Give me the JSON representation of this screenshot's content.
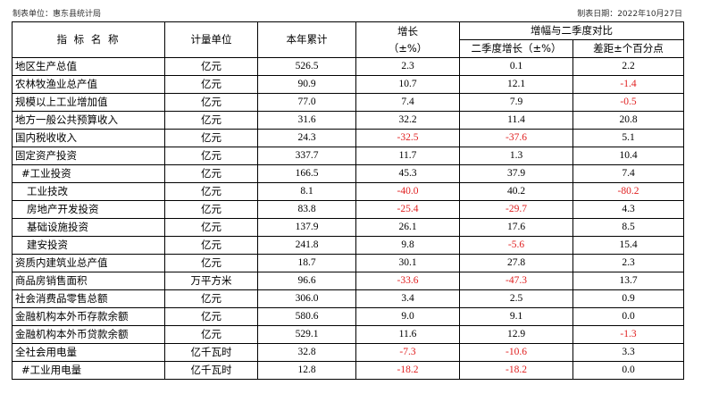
{
  "meta": {
    "unit_label": "制表单位：惠东县统计局",
    "date_label": "制表日期：2022年10月27日"
  },
  "header": {
    "name": "指 标 名 称",
    "unit": "计量单位",
    "ytd": "本年累计",
    "growth_line1": "增长",
    "growth_line2": "（±%）",
    "compare_group": "增幅与二季度对比",
    "q2_growth": "二季度增长（±%）",
    "diff": "差距±个百分点"
  },
  "rows": [
    {
      "name": "地区生产总值",
      "indent": 0,
      "unit": "亿元",
      "ytd": "526.5",
      "growth": "2.3",
      "q2": "0.1",
      "diff": "2.2"
    },
    {
      "name": "农林牧渔业总产值",
      "indent": 0,
      "unit": "亿元",
      "ytd": "90.9",
      "growth": "10.7",
      "q2": "12.1",
      "diff": "-1.4"
    },
    {
      "name": "规模以上工业增加值",
      "indent": 0,
      "unit": "亿元",
      "ytd": "77.0",
      "growth": "7.4",
      "q2": "7.9",
      "diff": "-0.5"
    },
    {
      "name": "地方一般公共预算收入",
      "indent": 0,
      "unit": "亿元",
      "ytd": "31.6",
      "growth": "32.2",
      "q2": "11.4",
      "diff": "20.8"
    },
    {
      "name": "国内税收收入",
      "indent": 0,
      "unit": "亿元",
      "ytd": "24.3",
      "growth": "-32.5",
      "q2": "-37.6",
      "diff": "5.1"
    },
    {
      "name": "固定资产投资",
      "indent": 0,
      "unit": "亿元",
      "ytd": "337.7",
      "growth": "11.7",
      "q2": "1.3",
      "diff": "10.4"
    },
    {
      "name": "#工业投资",
      "indent": 1,
      "unit": "亿元",
      "ytd": "166.5",
      "growth": "45.3",
      "q2": "37.9",
      "diff": "7.4"
    },
    {
      "name": "工业技改",
      "indent": 2,
      "unit": "亿元",
      "ytd": "8.1",
      "growth": "-40.0",
      "q2": "40.2",
      "diff": "-80.2"
    },
    {
      "name": "房地产开发投资",
      "indent": 2,
      "unit": "亿元",
      "ytd": "83.8",
      "growth": "-25.4",
      "q2": "-29.7",
      "diff": "4.3"
    },
    {
      "name": "基础设施投资",
      "indent": 2,
      "unit": "亿元",
      "ytd": "137.9",
      "growth": "26.1",
      "q2": "17.6",
      "diff": "8.5"
    },
    {
      "name": "建安投资",
      "indent": 2,
      "unit": "亿元",
      "ytd": "241.8",
      "growth": "9.8",
      "q2": "-5.6",
      "diff": "15.4"
    },
    {
      "name": "资质内建筑业总产值",
      "indent": 0,
      "unit": "亿元",
      "ytd": "18.7",
      "growth": "30.1",
      "q2": "27.8",
      "diff": "2.3"
    },
    {
      "name": "商品房销售面积",
      "indent": 0,
      "unit": "万平方米",
      "ytd": "96.6",
      "growth": "-33.6",
      "q2": "-47.3",
      "diff": "13.7"
    },
    {
      "name": "社会消费品零售总额",
      "indent": 0,
      "unit": "亿元",
      "ytd": "306.0",
      "growth": "3.4",
      "q2": "2.5",
      "diff": "0.9"
    },
    {
      "name": "金融机构本外币存款余额",
      "indent": 0,
      "unit": "亿元",
      "ytd": "580.6",
      "growth": "9.0",
      "q2": "9.1",
      "diff": "0.0"
    },
    {
      "name": "金融机构本外币贷款余额",
      "indent": 0,
      "unit": "亿元",
      "ytd": "529.1",
      "growth": "11.6",
      "q2": "12.9",
      "diff": "-1.3"
    },
    {
      "name": "全社会用电量",
      "indent": 0,
      "unit": "亿千瓦时",
      "ytd": "32.8",
      "growth": "-7.3",
      "q2": "-10.6",
      "diff": "3.3"
    },
    {
      "name": "#工业用电量",
      "indent": 1,
      "unit": "亿千瓦时",
      "ytd": "12.8",
      "growth": "-18.2",
      "q2": "-18.2",
      "diff": "0.0"
    }
  ],
  "colors": {
    "negative_value": "#e02020",
    "grid_line": "#000000"
  }
}
